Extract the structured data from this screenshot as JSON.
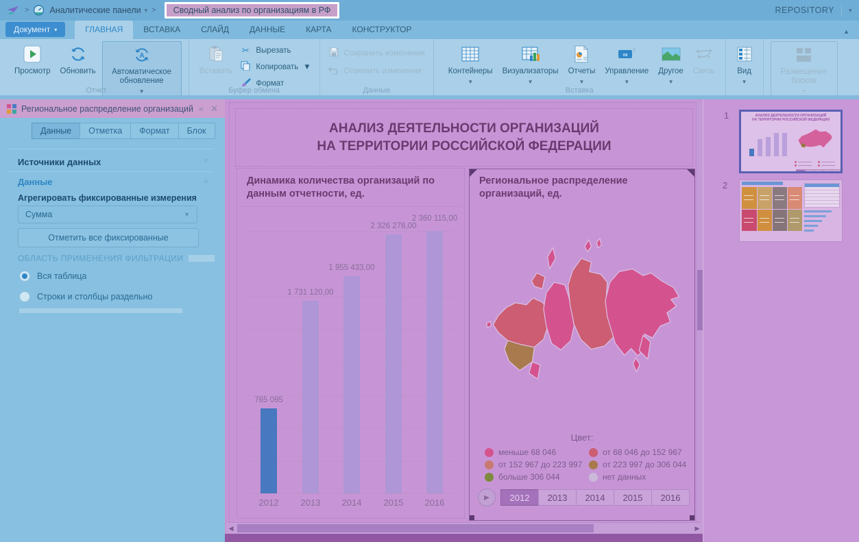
{
  "topbar": {
    "breadcrumb_parent": "Аналитические панели",
    "breadcrumb_current": "Сводный анализ по организациям в РФ",
    "repository": "REPOSITORY"
  },
  "ribbon": {
    "document_button": "Документ",
    "tabs": [
      "ГЛАВНАЯ",
      "ВСТАВКА",
      "СЛАЙД",
      "ДАННЫЕ",
      "КАРТА",
      "КОНСТРУКТОР"
    ],
    "active_tab": "ГЛАВНАЯ",
    "buttons": {
      "preview": "Просмотр",
      "refresh": "Обновить",
      "auto_refresh": "Автоматическое обновление",
      "paste": "Вставить",
      "cut": "Вырезать",
      "copy": "Копировать",
      "format": "Формат",
      "save_changes": "Сохранить изменения",
      "undo_changes": "Отменить изменения",
      "containers": "Контейнеры",
      "visualizers": "Визуализаторы",
      "reports": "Отчеты",
      "management": "Управление",
      "other": "Другое",
      "link": "Связь",
      "view": "Вид",
      "blocks_layout": "Размещение блоков"
    },
    "management_icon_text": "ок",
    "group_labels": [
      "Отчет",
      "Буфер обмена",
      "Данные",
      "Вставка"
    ]
  },
  "left_panel": {
    "title": "Региональное распределение организаций",
    "tabs": [
      "Данные",
      "Отметка",
      "Формат",
      "Блок"
    ],
    "active_tab": "Данные",
    "section_data_sources": "Источники данных",
    "section_data": "Данные",
    "aggregate_label": "Агрегировать фиксированные измерения",
    "aggregate_value": "Сумма",
    "mark_all_button": "Отметить все фиксированные",
    "filtration_header": "ОБЛАСТЬ ПРИМЕНЕНИЯ ФИЛЬТРАЦИИ",
    "radio_whole_table": "Вся таблица",
    "radio_rows_cols": "Строки и столбцы раздельно",
    "selected_radio": "Вся таблица"
  },
  "slide": {
    "title_line1": "АНАЛИЗ ДЕЯТЕЛЬНОСТИ ОРГАНИЗАЦИЙ",
    "title_line2": "НА ТЕРРИТОРИИ РОССИЙСКОЙ ФЕДЕРАЦИИ"
  },
  "chart_data": [
    {
      "type": "bar",
      "title": "Динамика количества организаций по данным отчетности, ед.",
      "categories": [
        "2012",
        "2013",
        "2014",
        "2015",
        "2016"
      ],
      "values": [
        765095,
        1731120,
        1955433,
        2326276,
        2360115
      ],
      "value_labels": [
        "765 095",
        "1 731 120,00",
        "1 955 433,00",
        "2 326 276,00",
        "2 360 115,00"
      ],
      "bar_colors": [
        "#4878bf",
        "#af96d6",
        "#af96d6",
        "#af96d6",
        "#af96d6"
      ],
      "xlabel": "",
      "ylabel": "",
      "ylim": [
        0,
        2400000
      ],
      "grid": true,
      "legend_position": "none"
    },
    {
      "type": "heatmap",
      "subtype": "choropleth-map-of-russia",
      "title": "Региональное распределение организаций, ед.",
      "legend_title": "Цвет:",
      "classes": [
        {
          "label": "меньше 68 046",
          "color": "#d4538f"
        },
        {
          "label": "от 68 046 до 152 967",
          "color": "#cc5d72"
        },
        {
          "label": "от 152 967 до 223 997",
          "color": "#c97a70"
        },
        {
          "label": "от 223 997 до 306 044",
          "color": "#a87a4e"
        },
        {
          "label": "больше 306 044",
          "color": "#7e8a3e"
        },
        {
          "label": "нет данных",
          "color": "#cbb9da"
        }
      ],
      "years": [
        "2012",
        "2013",
        "2014",
        "2015",
        "2016"
      ],
      "selected_year": "2012"
    }
  ],
  "thumbnails": [
    {
      "number": "1",
      "selected": true
    },
    {
      "number": "2",
      "selected": false
    }
  ]
}
